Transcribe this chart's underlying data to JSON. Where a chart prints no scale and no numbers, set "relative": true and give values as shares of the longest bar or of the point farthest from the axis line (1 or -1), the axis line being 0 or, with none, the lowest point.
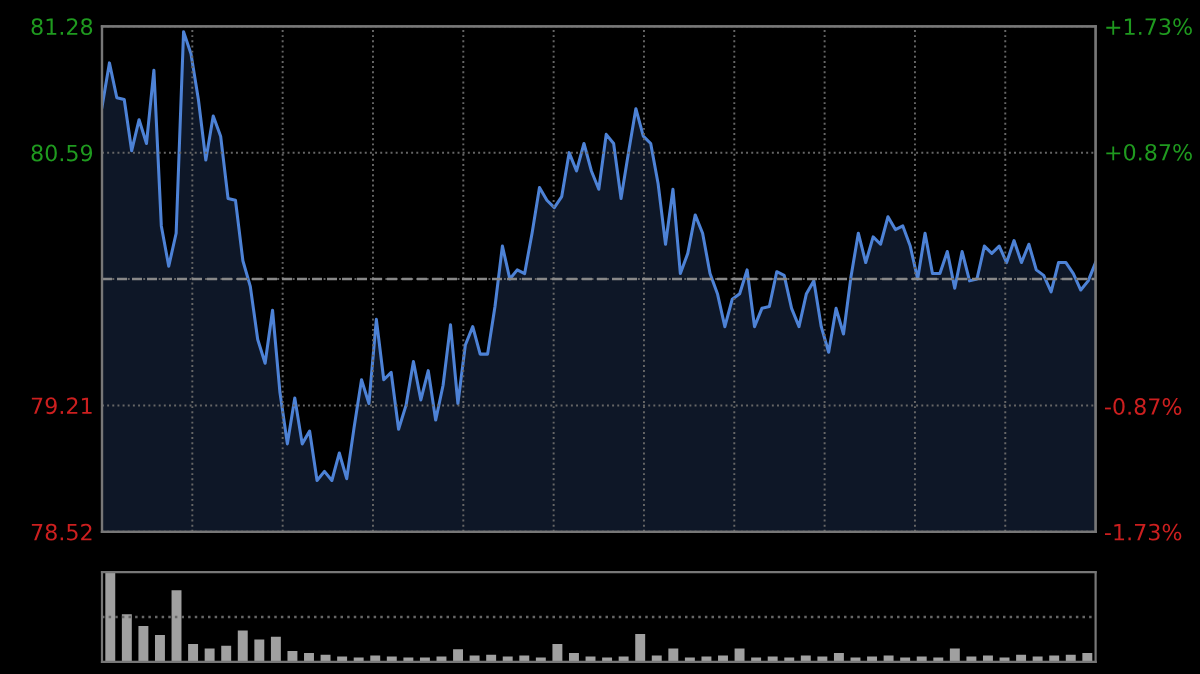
{
  "chart_data": [
    {
      "type": "area",
      "categories": [
        null,
        null,
        null,
        null,
        null,
        null,
        null,
        null,
        null,
        null,
        null,
        null,
        null,
        null,
        null,
        null,
        null,
        null,
        null,
        null,
        null,
        null,
        null,
        null,
        null,
        null,
        null,
        null,
        null,
        null,
        null,
        null,
        null,
        null,
        null,
        null,
        null,
        null,
        null,
        null,
        null,
        null,
        null,
        null,
        null,
        null,
        null,
        null,
        null,
        null,
        null,
        null,
        null,
        null,
        null,
        null,
        null,
        null,
        null,
        null,
        null,
        null,
        null,
        null,
        null,
        null,
        null,
        null,
        null,
        null,
        null,
        null,
        null,
        null,
        null,
        null,
        null,
        null,
        null,
        null,
        null,
        null,
        null,
        null,
        null,
        null,
        null,
        null,
        null,
        null,
        null,
        null,
        null,
        null,
        null,
        null,
        null,
        null,
        null,
        null,
        null,
        null,
        null,
        null,
        null,
        null,
        null,
        null,
        null,
        null,
        null,
        null,
        null,
        null,
        null,
        null,
        null,
        null,
        null,
        null,
        null,
        null,
        null,
        null,
        null,
        null,
        null,
        null,
        null,
        null,
        null,
        null,
        null,
        null,
        null
      ],
      "series": [
        {
          "color": "#4d82d6",
          "values": [
            80.84,
            81.08,
            80.89,
            80.88,
            80.6,
            80.77,
            80.64,
            81.04,
            80.19,
            79.97,
            80.15,
            81.25,
            81.13,
            80.88,
            80.55,
            80.79,
            80.68,
            80.34,
            80.33,
            80.0,
            79.86,
            79.57,
            79.44,
            79.73,
            79.28,
            79.0,
            79.25,
            79.0,
            79.07,
            78.8,
            78.85,
            78.8,
            78.95,
            78.81,
            79.09,
            79.35,
            79.22,
            79.68,
            79.35,
            79.39,
            79.08,
            79.21,
            79.45,
            79.24,
            79.4,
            79.13,
            79.32,
            79.65,
            79.22,
            79.54,
            79.64,
            79.49,
            79.49,
            79.75,
            80.08,
            79.9,
            79.95,
            79.93,
            80.15,
            80.4,
            80.33,
            80.29,
            80.35,
            80.59,
            80.49,
            80.64,
            80.49,
            80.39,
            80.69,
            80.64,
            80.34,
            80.59,
            80.83,
            80.68,
            80.64,
            80.42,
            80.09,
            80.39,
            79.93,
            80.04,
            80.25,
            80.15,
            79.93,
            79.82,
            79.64,
            79.79,
            79.82,
            79.95,
            79.64,
            79.74,
            79.75,
            79.94,
            79.92,
            79.74,
            79.64,
            79.82,
            79.89,
            79.64,
            79.5,
            79.74,
            79.6,
            79.91,
            80.15,
            79.99,
            80.13,
            80.09,
            80.24,
            80.17,
            80.19,
            80.08,
            79.9,
            80.15,
            79.93,
            79.93,
            80.05,
            79.85,
            80.05,
            79.89,
            79.9,
            80.08,
            80.04,
            80.08,
            79.99,
            80.11,
            79.99,
            80.09,
            79.95,
            79.92,
            79.83,
            79.99,
            79.99,
            79.93,
            79.84,
            79.89,
            79.99
          ]
        }
      ],
      "ylim": [
        78.52,
        81.28
      ],
      "yticks": [
        78.52,
        79.21,
        {
          "value": 79.9,
          "label": null
        },
        80.59,
        81.28
      ],
      "y2lim": [
        -1.73,
        1.73
      ],
      "y2ticks": [
        {
          "value": -1.73,
          "label": "-1.73%"
        },
        {
          "value": -0.87,
          "label": "-0.87%"
        },
        {
          "value": 0.87,
          "label": "+0.87%"
        },
        {
          "value": 1.73,
          "label": "+1.73%"
        }
      ],
      "ref_lines": [
        {
          "axis": "y",
          "value": 79.9,
          "color": "#888888",
          "line_style": "dashed"
        }
      ],
      "grid": true,
      "tick_labels": "y",
      "legend": false
    },
    {
      "type": "bar",
      "relative": true,
      "tick_labels": false,
      "color": "#a0a0a0",
      "ref_lines": [
        {
          "axis": "y",
          "value": 0.5,
          "color": "#666666",
          "line_style": "dotted"
        }
      ],
      "categories": [
        null,
        null,
        null,
        null,
        null,
        null,
        null,
        null,
        null,
        null,
        null,
        null,
        null,
        null,
        null,
        null,
        null,
        null,
        null,
        null,
        null,
        null,
        null,
        null,
        null,
        null,
        null,
        null,
        null,
        null,
        null,
        null,
        null,
        null,
        null,
        null,
        null,
        null,
        null,
        null,
        null,
        null,
        null,
        null,
        null,
        null,
        null,
        null,
        null,
        null,
        null,
        null,
        null,
        null,
        null,
        null,
        null,
        null,
        null,
        null
      ],
      "values": [
        1.0,
        0.53,
        0.4,
        0.3,
        0.8,
        0.2,
        0.15,
        0.18,
        0.35,
        0.25,
        0.28,
        0.12,
        0.1,
        0.08,
        0.06,
        0.05,
        0.07,
        0.06,
        0.05,
        0.05,
        0.06,
        0.14,
        0.07,
        0.08,
        0.06,
        0.07,
        0.05,
        0.2,
        0.1,
        0.06,
        0.05,
        0.06,
        0.31,
        0.07,
        0.15,
        0.05,
        0.06,
        0.07,
        0.15,
        0.05,
        0.06,
        0.05,
        0.07,
        0.06,
        0.1,
        0.05,
        0.06,
        0.07,
        0.05,
        0.06,
        0.05,
        0.15,
        0.06,
        0.07,
        0.05,
        0.08,
        0.06,
        0.07,
        0.08,
        0.1
      ]
    }
  ]
}
